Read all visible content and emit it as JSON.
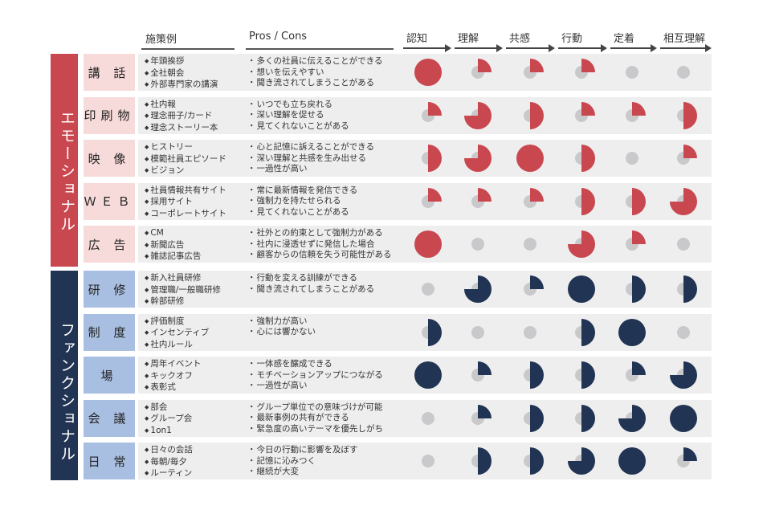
{
  "columns": {
    "examples": "施策例",
    "pros_cons": "Pros / Cons"
  },
  "stages": [
    "認知",
    "理解",
    "共感",
    "行動",
    "定着",
    "相互理解"
  ],
  "colors": {
    "emotional": "#c9474f",
    "emotional_light": "#f7dada",
    "functional": "#223453",
    "functional_light": "#a9bfe2",
    "empty": "#c9c9cc",
    "row_bg": "#eeeeef"
  },
  "groups": [
    {
      "label": "エモーショナル",
      "rows": [
        {
          "category": "講 話",
          "examples": [
            "年頭挨拶",
            "全社朝会",
            "外部専門家の講演"
          ],
          "pros_cons": [
            "多くの社員に伝えることができる",
            "想いを伝えやすい",
            "聞き流されてしまうことがある"
          ],
          "levels": [
            4,
            1,
            1,
            1,
            0,
            0
          ]
        },
        {
          "category": "印刷物",
          "examples": [
            "社内報",
            "理念冊子/カード",
            "理念ストーリー本"
          ],
          "pros_cons": [
            "いつでも立ち戻れる",
            "深い理解を促せる",
            "見てくれないことがある"
          ],
          "levels": [
            1,
            3,
            2,
            1,
            1,
            2
          ]
        },
        {
          "category": "映 像",
          "examples": [
            "ヒストリー",
            "模範社員エピソード",
            "ビジョン"
          ],
          "pros_cons": [
            "心と記憶に訴えることができる",
            "深い理解と共感を生み出せる",
            "一過性が高い"
          ],
          "levels": [
            2,
            3,
            4,
            2,
            0,
            1
          ]
        },
        {
          "category": "ＷＥＢ",
          "examples": [
            "社員情報共有サイト",
            "採用サイト",
            "コーポレートサイト"
          ],
          "pros_cons": [
            "常に最新情報を発信できる",
            "強制力を持たせられる",
            "見てくれないことがある"
          ],
          "levels": [
            1,
            1,
            1,
            2,
            2,
            3
          ]
        },
        {
          "category": "広 告",
          "examples": [
            "CM",
            "新聞広告",
            "雑誌記事広告"
          ],
          "pros_cons": [
            "社外との約束として強制力がある",
            "社内に浸透せずに発信した場合",
            "顧客からの信頼を失う可能性がある"
          ],
          "levels": [
            4,
            0,
            0,
            3,
            1,
            0
          ]
        }
      ]
    },
    {
      "label": "ファンクショナル",
      "rows": [
        {
          "category": "研 修",
          "examples": [
            "新入社員研修",
            "管理職/一般職研修",
            "幹部研修"
          ],
          "pros_cons": [
            "行動を変える訓練ができる",
            "聞き流されてしまうことがある"
          ],
          "levels": [
            0,
            3,
            1,
            4,
            2,
            2
          ]
        },
        {
          "category": "制 度",
          "examples": [
            "評価制度",
            "インセンティブ",
            "社内ルール"
          ],
          "pros_cons": [
            "強制力が高い",
            "心には響かない"
          ],
          "levels": [
            2,
            0,
            0,
            2,
            4,
            0
          ]
        },
        {
          "category": "場",
          "examples": [
            "周年イベント",
            "キックオフ",
            "表彰式"
          ],
          "pros_cons": [
            "一体感を醸成できる",
            "モチベーションアップにつながる",
            "一過性が高い"
          ],
          "levels": [
            4,
            1,
            2,
            2,
            1,
            3
          ]
        },
        {
          "category": "会 議",
          "examples": [
            "部会",
            "グループ会",
            "1on1"
          ],
          "pros_cons": [
            "グループ単位での意味づけが可能",
            "最新事例の共有ができる",
            "緊急度の高いテーマを優先しがち"
          ],
          "levels": [
            0,
            1,
            2,
            2,
            3,
            4
          ]
        },
        {
          "category": "日 常",
          "examples": [
            "日々の会話",
            "毎朝/毎夕",
            "ルーティン"
          ],
          "pros_cons": [
            "今日の行動に影響を及ぼす",
            "記憶に沁みつく",
            "継続が大変"
          ],
          "levels": [
            0,
            2,
            2,
            3,
            4,
            1
          ]
        }
      ]
    }
  ]
}
